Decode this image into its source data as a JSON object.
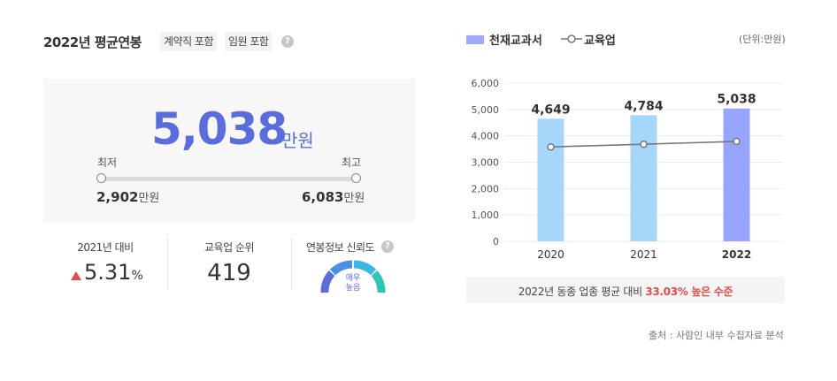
{
  "header": {
    "title": "2022년 평균연봉",
    "tag_contract": "계약직 포함",
    "tag_exec": "임원 포함",
    "help_icon": "?"
  },
  "salary": {
    "average": "5,038",
    "unit": "만원",
    "min_label": "최저",
    "max_label": "최고",
    "min_value": "2,902",
    "max_value": "6,083",
    "min_unit": "만원",
    "max_unit": "만원"
  },
  "stats": {
    "yoy_label": "2021년 대비",
    "yoy_value": "5.31",
    "yoy_unit": "%",
    "rank_label": "교육업 순위",
    "rank_value": "419",
    "reliability_label": "연봉정보 신뢰도",
    "reliability_text_1": "매우",
    "reliability_text_2": "높음",
    "reliability_level": 1.0
  },
  "chart_note": {
    "prefix": "2022년 동종 업종 평균 대비 ",
    "highlight": "33.03% 높은 수준",
    "source": "출처 : 사람인 내부 수집자료 분석"
  },
  "colors": {
    "accent": "#5b6cdc",
    "bar_normal": "#a7d6fb",
    "bar_current": "#97a6fc",
    "line": "#777777",
    "up_arrow": "#e64b4b"
  },
  "chart_data": {
    "type": "bar",
    "categories": [
      "2020",
      "2021",
      "2022"
    ],
    "series": [
      {
        "name": "천재교과서",
        "type": "bar",
        "values": [
          4649,
          4784,
          5038
        ],
        "labels": [
          "4,649",
          "4,784",
          "5,038"
        ]
      },
      {
        "name": "교육업",
        "type": "line",
        "values": [
          3580,
          3680,
          3790
        ]
      }
    ],
    "unit_label": "(단위:만원)",
    "yticks": [
      "6,000",
      "5,000",
      "4,000",
      "3,000",
      "2,000",
      "1,000",
      "0"
    ],
    "ylim": [
      0,
      6000
    ],
    "grid": true,
    "legend": "top-left"
  }
}
